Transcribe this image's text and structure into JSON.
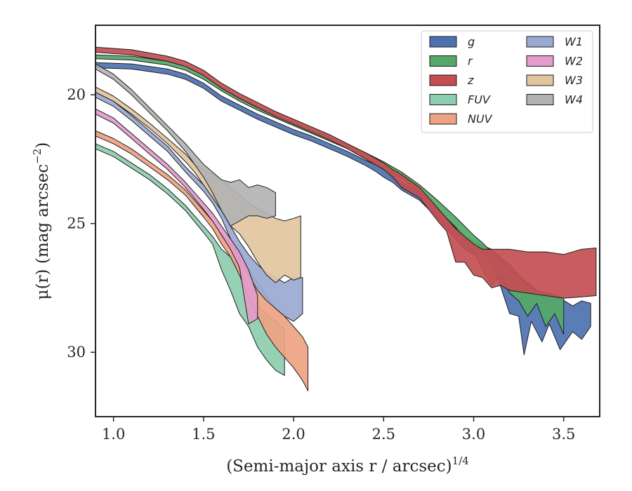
{
  "chart_data": {
    "type": "area",
    "xlabel": "(Semi-major axis r / arcsec)",
    "xlabel_sup": "1/4",
    "ylabel": "μ(r) (mag arcsec",
    "ylabel_sup": "−2",
    "ylabel_end": ")",
    "xlim": [
      0.9,
      3.7
    ],
    "ylim": [
      32.5,
      17.3
    ],
    "y_inverted": true,
    "xticks": [
      1.0,
      1.5,
      2.0,
      2.5,
      3.0,
      3.5
    ],
    "xtick_labels": [
      "1.0",
      "1.5",
      "2.0",
      "2.5",
      "3.0",
      "3.5"
    ],
    "yticks": [
      20,
      25,
      30
    ],
    "ytick_labels": [
      "20",
      "25",
      "30"
    ],
    "grid": false,
    "legend": {
      "placement": "top-right",
      "columns": 2
    },
    "series": [
      {
        "name": "g",
        "color": "#4c72b0",
        "band": [
          [
            0.9,
            18.75,
            18.95
          ],
          [
            1.1,
            18.8,
            19.0
          ],
          [
            1.3,
            19.0,
            19.2
          ],
          [
            1.4,
            19.2,
            19.4
          ],
          [
            1.5,
            19.55,
            19.75
          ],
          [
            1.6,
            20.05,
            20.25
          ],
          [
            1.7,
            20.4,
            20.6
          ],
          [
            1.8,
            20.75,
            20.95
          ],
          [
            1.9,
            21.05,
            21.25
          ],
          [
            2.0,
            21.35,
            21.55
          ],
          [
            2.1,
            21.6,
            21.8
          ],
          [
            2.2,
            21.9,
            22.1
          ],
          [
            2.3,
            22.2,
            22.4
          ],
          [
            2.4,
            22.55,
            22.75
          ],
          [
            2.45,
            22.7,
            22.95
          ],
          [
            2.5,
            22.9,
            23.2
          ],
          [
            2.55,
            23.1,
            23.4
          ],
          [
            2.6,
            23.4,
            23.7
          ],
          [
            2.7,
            23.8,
            24.1
          ],
          [
            2.8,
            24.45,
            24.8
          ],
          [
            2.9,
            25.1,
            25.6
          ],
          [
            2.95,
            25.5,
            26.0
          ],
          [
            3.0,
            25.7,
            26.2
          ],
          [
            3.1,
            26.0,
            26.4
          ],
          [
            3.2,
            26.6,
            28.5
          ],
          [
            3.25,
            27.0,
            28.6
          ],
          [
            3.28,
            27.2,
            30.1
          ],
          [
            3.32,
            27.4,
            28.8
          ],
          [
            3.38,
            27.8,
            29.6
          ],
          [
            3.42,
            27.7,
            28.9
          ],
          [
            3.48,
            27.9,
            29.9
          ],
          [
            3.55,
            28.2,
            29.2
          ],
          [
            3.6,
            28.0,
            29.5
          ],
          [
            3.65,
            28.1,
            29.0
          ]
        ]
      },
      {
        "name": "r",
        "color": "#55a868",
        "band": [
          [
            0.9,
            18.45,
            18.6
          ],
          [
            1.1,
            18.5,
            18.65
          ],
          [
            1.3,
            18.7,
            18.85
          ],
          [
            1.4,
            18.9,
            19.05
          ],
          [
            1.5,
            19.25,
            19.4
          ],
          [
            1.6,
            19.7,
            19.85
          ],
          [
            1.7,
            20.1,
            20.25
          ],
          [
            1.8,
            20.45,
            20.6
          ],
          [
            1.9,
            20.75,
            20.9
          ],
          [
            2.0,
            21.05,
            21.2
          ],
          [
            2.1,
            21.35,
            21.5
          ],
          [
            2.2,
            21.65,
            21.8
          ],
          [
            2.3,
            21.95,
            22.1
          ],
          [
            2.4,
            22.25,
            22.45
          ],
          [
            2.5,
            22.6,
            22.85
          ],
          [
            2.6,
            23.0,
            23.25
          ],
          [
            2.7,
            23.5,
            23.8
          ],
          [
            2.8,
            24.1,
            24.45
          ],
          [
            2.9,
            24.75,
            25.15
          ],
          [
            3.0,
            25.45,
            26.1
          ],
          [
            3.05,
            25.75,
            26.8
          ],
          [
            3.1,
            26.1,
            27.4
          ],
          [
            3.15,
            26.45,
            27.0
          ],
          [
            3.2,
            26.8,
            27.7
          ],
          [
            3.25,
            27.0,
            28.0
          ],
          [
            3.3,
            27.4,
            28.6
          ],
          [
            3.35,
            27.6,
            28.1
          ],
          [
            3.4,
            27.7,
            29.0
          ],
          [
            3.45,
            27.8,
            28.5
          ],
          [
            3.5,
            27.9,
            29.3
          ]
        ]
      },
      {
        "name": "z",
        "color": "#c44e52",
        "band": [
          [
            0.9,
            18.15,
            18.35
          ],
          [
            1.1,
            18.25,
            18.45
          ],
          [
            1.3,
            18.5,
            18.7
          ],
          [
            1.4,
            18.7,
            18.9
          ],
          [
            1.5,
            19.05,
            19.25
          ],
          [
            1.6,
            19.55,
            19.75
          ],
          [
            1.7,
            19.95,
            20.15
          ],
          [
            1.8,
            20.3,
            20.5
          ],
          [
            1.9,
            20.65,
            20.85
          ],
          [
            2.0,
            20.95,
            21.15
          ],
          [
            2.1,
            21.25,
            21.45
          ],
          [
            2.2,
            21.55,
            21.75
          ],
          [
            2.3,
            21.9,
            22.1
          ],
          [
            2.4,
            22.25,
            22.5
          ],
          [
            2.5,
            22.65,
            22.9
          ],
          [
            2.55,
            22.9,
            23.2
          ],
          [
            2.6,
            23.1,
            23.6
          ],
          [
            2.7,
            23.6,
            24.0
          ],
          [
            2.8,
            24.4,
            24.9
          ],
          [
            2.85,
            24.8,
            25.3
          ],
          [
            2.9,
            25.2,
            26.5
          ],
          [
            2.95,
            25.5,
            26.5
          ],
          [
            3.0,
            25.8,
            27.0
          ],
          [
            3.05,
            26.0,
            27.1
          ],
          [
            3.1,
            26.0,
            27.5
          ],
          [
            3.15,
            26.0,
            27.4
          ],
          [
            3.2,
            26.0,
            27.6
          ],
          [
            3.3,
            26.1,
            27.7
          ],
          [
            3.4,
            26.1,
            27.8
          ],
          [
            3.5,
            26.2,
            27.9
          ],
          [
            3.6,
            26.0,
            27.85
          ],
          [
            3.68,
            25.95,
            27.8
          ]
        ]
      },
      {
        "name": "FUV",
        "color": "#8dcdb0",
        "band": [
          [
            0.9,
            21.9,
            22.1
          ],
          [
            1.0,
            22.2,
            22.4
          ],
          [
            1.1,
            22.65,
            22.85
          ],
          [
            1.2,
            23.1,
            23.3
          ],
          [
            1.3,
            23.65,
            23.85
          ],
          [
            1.4,
            24.3,
            24.5
          ],
          [
            1.5,
            25.1,
            25.35
          ],
          [
            1.55,
            25.5,
            25.8
          ],
          [
            1.6,
            26.0,
            26.8
          ],
          [
            1.65,
            26.3,
            27.6
          ],
          [
            1.7,
            26.8,
            28.5
          ],
          [
            1.75,
            27.4,
            29.0
          ],
          [
            1.8,
            28.2,
            29.8
          ],
          [
            1.85,
            28.5,
            30.3
          ],
          [
            1.9,
            28.8,
            30.7
          ],
          [
            1.95,
            29.1,
            30.9
          ]
        ]
      },
      {
        "name": "NUV",
        "color": "#eea283",
        "band": [
          [
            0.9,
            21.4,
            21.6
          ],
          [
            1.0,
            21.7,
            21.9
          ],
          [
            1.1,
            22.1,
            22.3
          ],
          [
            1.2,
            22.6,
            22.8
          ],
          [
            1.3,
            23.1,
            23.3
          ],
          [
            1.4,
            23.7,
            23.9
          ],
          [
            1.5,
            24.5,
            24.75
          ],
          [
            1.55,
            24.9,
            25.2
          ],
          [
            1.6,
            25.4,
            25.8
          ],
          [
            1.65,
            25.8,
            26.3
          ],
          [
            1.7,
            26.3,
            27.0
          ],
          [
            1.75,
            26.8,
            27.9
          ],
          [
            1.8,
            27.3,
            28.6
          ],
          [
            1.85,
            27.8,
            29.3
          ],
          [
            1.9,
            28.3,
            29.8
          ],
          [
            1.95,
            28.6,
            30.2
          ],
          [
            2.0,
            29.0,
            30.6
          ],
          [
            2.05,
            29.4,
            31.1
          ],
          [
            2.08,
            29.8,
            31.5
          ]
        ]
      },
      {
        "name": "W1",
        "color": "#9aa9d1",
        "band": [
          [
            0.9,
            19.9,
            20.1
          ],
          [
            1.0,
            20.25,
            20.45
          ],
          [
            1.1,
            20.8,
            21.0
          ],
          [
            1.2,
            21.4,
            21.6
          ],
          [
            1.3,
            22.0,
            22.2
          ],
          [
            1.4,
            22.8,
            23.0
          ],
          [
            1.5,
            23.5,
            23.75
          ],
          [
            1.55,
            23.9,
            24.2
          ],
          [
            1.6,
            24.4,
            24.8
          ],
          [
            1.65,
            25.1,
            25.6
          ],
          [
            1.7,
            25.7,
            26.4
          ],
          [
            1.75,
            26.2,
            27.0
          ],
          [
            1.8,
            26.6,
            27.6
          ],
          [
            1.85,
            26.9,
            28.0
          ],
          [
            1.9,
            27.1,
            28.3
          ],
          [
            1.95,
            27.3,
            28.6
          ],
          [
            2.0,
            27.1,
            28.8
          ],
          [
            2.05,
            27.1,
            28.5
          ]
        ]
      },
      {
        "name": "W2",
        "color": "#e39ccb",
        "band": [
          [
            0.9,
            20.55,
            20.75
          ],
          [
            1.0,
            20.9,
            21.1
          ],
          [
            1.1,
            21.5,
            21.7
          ],
          [
            1.2,
            22.1,
            22.3
          ],
          [
            1.3,
            22.7,
            22.9
          ],
          [
            1.4,
            23.4,
            23.6
          ],
          [
            1.5,
            24.2,
            24.45
          ],
          [
            1.55,
            24.6,
            24.9
          ],
          [
            1.6,
            25.1,
            25.45
          ],
          [
            1.65,
            25.6,
            26.0
          ],
          [
            1.7,
            26.1,
            26.7
          ],
          [
            1.75,
            26.8,
            28.9
          ],
          [
            1.8,
            27.8,
            28.7
          ]
        ]
      },
      {
        "name": "W3",
        "color": "#e2c59f",
        "band": [
          [
            0.9,
            19.7,
            19.9
          ],
          [
            1.0,
            20.05,
            20.25
          ],
          [
            1.1,
            20.55,
            20.75
          ],
          [
            1.2,
            21.1,
            21.3
          ],
          [
            1.3,
            21.7,
            21.9
          ],
          [
            1.4,
            22.3,
            22.6
          ],
          [
            1.45,
            22.7,
            23.0
          ],
          [
            1.5,
            22.9,
            23.5
          ],
          [
            1.55,
            23.1,
            24.0
          ],
          [
            1.6,
            23.3,
            24.5
          ],
          [
            1.65,
            23.6,
            25.1
          ],
          [
            1.7,
            23.9,
            25.4
          ],
          [
            1.75,
            24.2,
            25.9
          ],
          [
            1.8,
            24.4,
            26.5
          ],
          [
            1.85,
            24.6,
            27.0
          ],
          [
            1.9,
            24.8,
            27.3
          ],
          [
            1.95,
            24.9,
            27.0
          ],
          [
            2.0,
            24.8,
            27.2
          ],
          [
            2.04,
            24.7,
            27.1
          ]
        ]
      },
      {
        "name": "W4",
        "color": "#b3b3b3",
        "band": [
          [
            0.9,
            18.8,
            19.0
          ],
          [
            1.0,
            19.2,
            19.4
          ],
          [
            1.1,
            19.8,
            20.0
          ],
          [
            1.2,
            20.5,
            20.7
          ],
          [
            1.3,
            21.2,
            21.4
          ],
          [
            1.4,
            21.9,
            22.2
          ],
          [
            1.45,
            22.3,
            22.7
          ],
          [
            1.5,
            22.7,
            23.2
          ],
          [
            1.55,
            23.0,
            23.8
          ],
          [
            1.6,
            23.3,
            24.5
          ],
          [
            1.65,
            23.4,
            25.1
          ],
          [
            1.7,
            23.3,
            24.9
          ],
          [
            1.75,
            23.6,
            24.7
          ],
          [
            1.8,
            23.5,
            24.7
          ],
          [
            1.85,
            23.6,
            24.8
          ],
          [
            1.9,
            23.8,
            24.7
          ]
        ]
      }
    ]
  }
}
